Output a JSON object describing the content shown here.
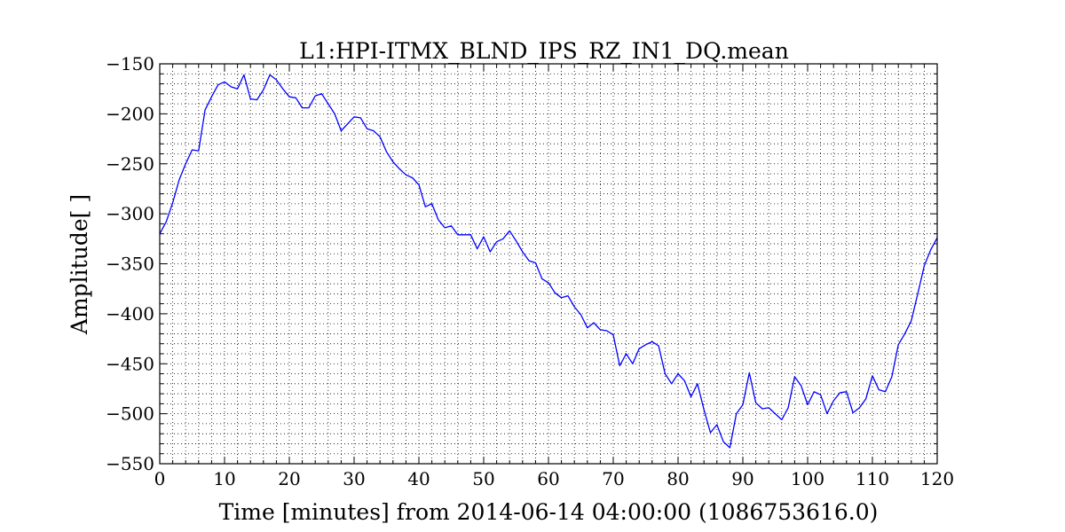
{
  "chart_data": {
    "type": "line",
    "title": "L1:HPI-ITMX_BLND_IPS_RZ_IN1_DQ.mean",
    "xlabel": "Time [minutes] from 2014-06-14 04:00:00 (1086753616.0)",
    "ylabel": "Amplitude[ ]",
    "xlim": [
      0,
      120
    ],
    "ylim": [
      -550,
      -150
    ],
    "xticks": [
      0,
      10,
      20,
      30,
      40,
      50,
      60,
      70,
      80,
      90,
      100,
      110,
      120
    ],
    "yticks": [
      -150,
      -200,
      -250,
      -300,
      -350,
      -400,
      -450,
      -500,
      -550
    ],
    "xtick_labels": [
      "0",
      "10",
      "20",
      "30",
      "40",
      "50",
      "60",
      "70",
      "80",
      "90",
      "100",
      "110",
      "120"
    ],
    "ytick_labels": [
      "−150",
      "−200",
      "−250",
      "−300",
      "−350",
      "−400",
      "−450",
      "−500",
      "−550"
    ],
    "grid": true,
    "line_color": "#0000ff",
    "series": [
      {
        "x": [
          0,
          1,
          2,
          3,
          4,
          5,
          6,
          7,
          8,
          9,
          10,
          11,
          12,
          13,
          14,
          15,
          16,
          17,
          18,
          19,
          20,
          21,
          22,
          23,
          24,
          25,
          26,
          27,
          28,
          29,
          30,
          31,
          32,
          33,
          34,
          35,
          36,
          37,
          38,
          39,
          40,
          41,
          42,
          43,
          44,
          45,
          46,
          47,
          48,
          49,
          50,
          51,
          52,
          53,
          54,
          55,
          56,
          57,
          58,
          59,
          60,
          61,
          62,
          63,
          64,
          65,
          66,
          67,
          68,
          69,
          70,
          71,
          72,
          73,
          74,
          75,
          76,
          77,
          78,
          79,
          80,
          81,
          82,
          83,
          84,
          85,
          86,
          87,
          88,
          89,
          90,
          91,
          92,
          93,
          94,
          95,
          96,
          97,
          98,
          99,
          100,
          101,
          102,
          103,
          104,
          105,
          106,
          107,
          108,
          109,
          110,
          111,
          112,
          113,
          114,
          115,
          116,
          117,
          118,
          119,
          120
        ],
        "values": [
          -320,
          -308,
          -289,
          -266,
          -250,
          -236,
          -237,
          -196,
          -183,
          -171,
          -168,
          -173,
          -175,
          -161,
          -185,
          -186,
          -176,
          -161,
          -166,
          -175,
          -183,
          -184,
          -194,
          -194,
          -182,
          -180,
          -190,
          -200,
          -217,
          -210,
          -203,
          -204,
          -215,
          -217,
          -223,
          -238,
          -248,
          -255,
          -261,
          -264,
          -271,
          -293,
          -290,
          -306,
          -314,
          -312,
          -321,
          -321,
          -321,
          -335,
          -323,
          -338,
          -328,
          -325,
          -317,
          -327,
          -338,
          -347,
          -349,
          -365,
          -369,
          -379,
          -384,
          -382,
          -393,
          -401,
          -414,
          -409,
          -416,
          -417,
          -421,
          -452,
          -440,
          -450,
          -435,
          -431,
          -428,
          -432,
          -460,
          -470,
          -460,
          -467,
          -483,
          -470,
          -496,
          -519,
          -511,
          -528,
          -534,
          -500,
          -491,
          -459,
          -489,
          -495,
          -494,
          -500,
          -506,
          -494,
          -463,
          -472,
          -491,
          -478,
          -481,
          -500,
          -487,
          -479,
          -478,
          -499,
          -494,
          -485,
          -462,
          -476,
          -478,
          -463,
          -431,
          -420,
          -407,
          -380,
          -352,
          -336,
          -324
        ]
      }
    ]
  }
}
